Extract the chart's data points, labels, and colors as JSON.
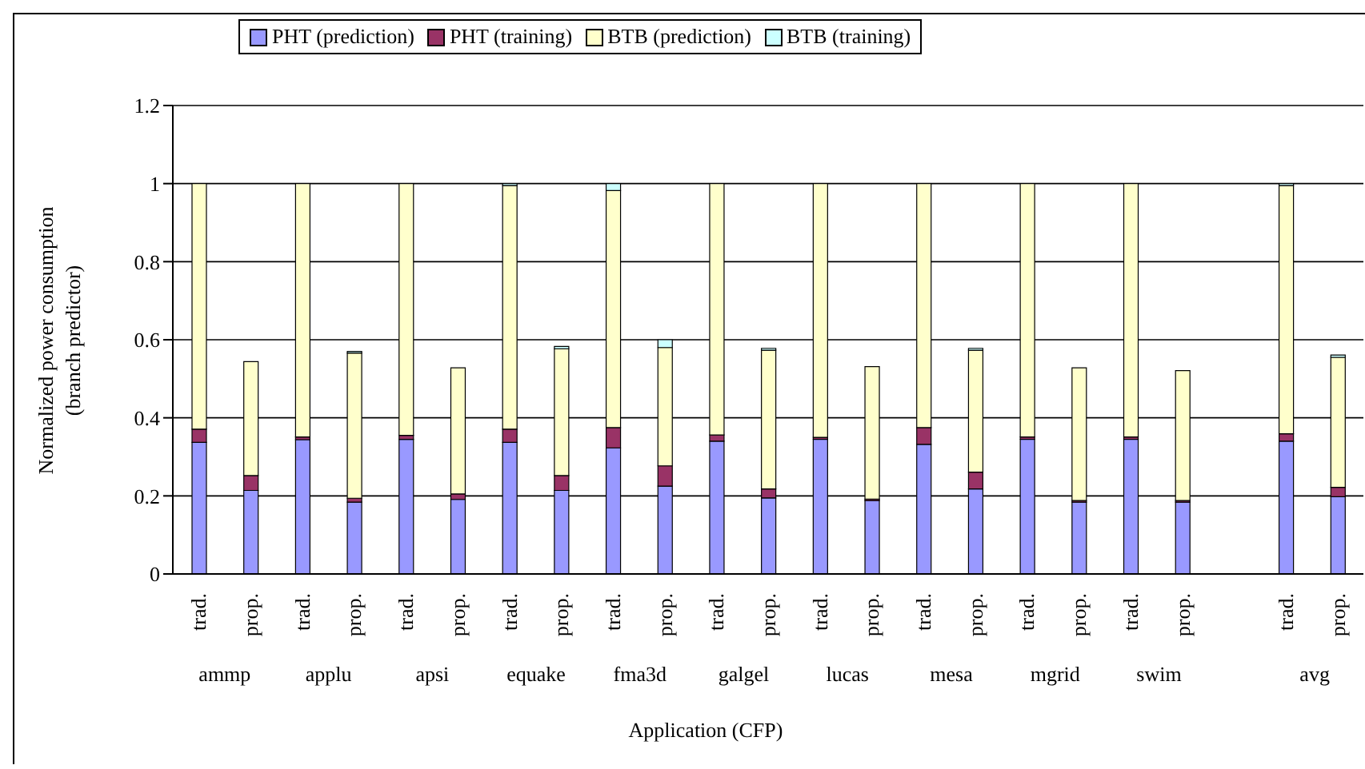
{
  "chart_data": {
    "type": "bar",
    "stacked": true,
    "categories": [
      "trad.",
      "prop.",
      "trad.",
      "prop.",
      "trad.",
      "prop.",
      "trad.",
      "prop.",
      "trad.",
      "prop.",
      "trad.",
      "prop.",
      "trad.",
      "prop.",
      "trad.",
      "prop.",
      "trad.",
      "prop.",
      "trad.",
      "prop.",
      null,
      "trad.",
      "prop."
    ],
    "series": [
      {
        "name": "PHT (prediction)",
        "color": "#9999ff",
        "values": [
          0.337,
          0.214,
          0.344,
          0.184,
          0.345,
          0.191,
          0.337,
          0.214,
          0.323,
          0.225,
          0.34,
          0.195,
          0.345,
          0.188,
          0.332,
          0.218,
          0.345,
          0.184,
          0.345,
          0.184,
          null,
          0.34,
          0.198
        ]
      },
      {
        "name": "PHT (training)",
        "color": "#993366",
        "values": [
          0.034,
          0.038,
          0.007,
          0.01,
          0.01,
          0.014,
          0.034,
          0.038,
          0.052,
          0.052,
          0.016,
          0.023,
          0.005,
          0.004,
          0.043,
          0.043,
          0.006,
          0.004,
          0.006,
          0.004,
          null,
          0.019,
          0.024
        ]
      },
      {
        "name": "BTB (prediction)",
        "color": "#ffffcc",
        "values": [
          0.629,
          0.292,
          0.649,
          0.372,
          0.645,
          0.323,
          0.624,
          0.325,
          0.607,
          0.303,
          0.644,
          0.355,
          0.65,
          0.339,
          0.625,
          0.312,
          0.649,
          0.34,
          0.649,
          0.333,
          null,
          0.636,
          0.333
        ]
      },
      {
        "name": "BTB (training)",
        "color": "#ccffff",
        "values": [
          0,
          0,
          0,
          0.004,
          0,
          0,
          0.005,
          0.006,
          0.018,
          0.02,
          0,
          0.005,
          0,
          0,
          0,
          0.005,
          0,
          0,
          0,
          0,
          null,
          0.005,
          0.006
        ]
      }
    ],
    "ylim": [
      0,
      1.2
    ],
    "yticks": [
      0,
      0.2,
      0.4,
      0.6,
      0.8,
      1,
      1.2
    ],
    "grid": "y",
    "legend": "top",
    "ylabel": "Normalized power consumption\n(branch predictor)",
    "xlabel": "Application (CFP)",
    "annotations": [
      "ammp",
      "applu",
      "apsi",
      "equake",
      "fma3d",
      "galgel",
      "lucas",
      "mesa",
      "mgrid",
      "swim",
      "avg"
    ]
  }
}
